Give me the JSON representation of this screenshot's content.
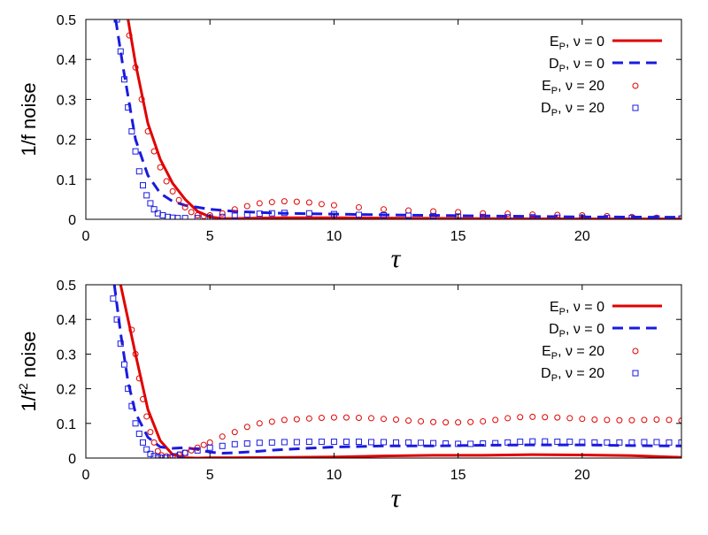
{
  "chart_data": [
    {
      "type": "line",
      "title": "",
      "ylabel": "1/f noise",
      "xlabel": "τ",
      "xlim": [
        0,
        24
      ],
      "ylim": [
        0,
        0.5
      ],
      "xticks": [
        0,
        5,
        10,
        15,
        20
      ],
      "yticks": [
        0,
        0.1,
        0.2,
        0.3,
        0.4,
        0.5
      ],
      "xtick_labels": [
        "0",
        "5",
        "10",
        "15",
        "20"
      ],
      "ytick_labels": [
        "0",
        "0.1",
        "0.2",
        "0.3",
        "0.4",
        "0.5"
      ],
      "legend_position": "top-right",
      "series": [
        {
          "name": "E_P, ν = 0",
          "label_base": "E",
          "label_sub": "P",
          "label_suffix": ", ν = 0",
          "style": "solid",
          "color": "#e00000",
          "x": [
            1.7,
            2.0,
            2.5,
            3.0,
            3.5,
            4.0,
            4.5,
            5.0,
            5.5,
            6.0,
            7.0,
            8.0,
            10.0,
            12.0,
            15.0,
            20.0,
            24.0
          ],
          "y": [
            0.5,
            0.39,
            0.24,
            0.15,
            0.09,
            0.05,
            0.02,
            0.006,
            0.002,
            0.002,
            0.003,
            0.004,
            0.004,
            0.003,
            0.002,
            0.001,
            0.001
          ]
        },
        {
          "name": "D_P, ν = 0",
          "label_base": "D",
          "label_sub": "P",
          "label_suffix": ", ν = 0",
          "style": "dashed",
          "color": "#1a1ae0",
          "x": [
            1.2,
            1.5,
            2.0,
            2.5,
            3.0,
            3.5,
            4.0,
            4.5,
            5.0,
            6.0,
            7.0,
            8.0,
            9.0,
            10.0,
            12.0,
            15.0,
            20.0,
            24.0
          ],
          "y": [
            0.5,
            0.38,
            0.2,
            0.11,
            0.065,
            0.045,
            0.035,
            0.03,
            0.025,
            0.02,
            0.017,
            0.015,
            0.014,
            0.013,
            0.011,
            0.009,
            0.006,
            0.005
          ]
        },
        {
          "name": "E_P, ν = 20",
          "label_base": "E",
          "label_sub": "P",
          "label_suffix": ", ν = 20",
          "style": "circle",
          "color": "#e00000",
          "x": [
            1.75,
            2.0,
            2.25,
            2.5,
            2.75,
            3.0,
            3.25,
            3.5,
            3.75,
            4.0,
            4.25,
            4.5,
            4.75,
            5.0,
            5.5,
            6.0,
            6.5,
            7.0,
            7.5,
            8.0,
            8.5,
            9.0,
            9.5,
            10.0,
            11.0,
            12.0,
            13.0,
            14.0,
            15.0,
            16.0,
            17.0,
            18.0,
            19.0,
            20.0,
            21.0,
            22.0,
            23.0,
            24.0
          ],
          "y": [
            0.46,
            0.38,
            0.3,
            0.22,
            0.17,
            0.13,
            0.095,
            0.07,
            0.048,
            0.03,
            0.018,
            0.01,
            0.008,
            0.01,
            0.015,
            0.025,
            0.033,
            0.04,
            0.043,
            0.045,
            0.044,
            0.042,
            0.038,
            0.035,
            0.03,
            0.025,
            0.022,
            0.02,
            0.018,
            0.015,
            0.014,
            0.012,
            0.011,
            0.01,
            0.008,
            0.006,
            0.004,
            0.002
          ]
        },
        {
          "name": "D_P, ν = 20",
          "label_base": "D",
          "label_sub": "P",
          "label_suffix": ", ν = 20",
          "style": "square",
          "color": "#1a1ae0",
          "x": [
            1.25,
            1.4,
            1.55,
            1.7,
            1.85,
            2.0,
            2.15,
            2.3,
            2.45,
            2.6,
            2.75,
            2.9,
            3.1,
            3.3,
            3.5,
            3.7,
            4.0,
            4.5,
            5.0,
            5.5,
            6.0,
            6.5,
            7.0,
            7.5,
            8.0,
            9.0,
            10.0,
            11.0,
            12.0,
            13.0,
            14.0,
            15.0,
            16.0,
            17.0,
            18.0,
            19.0,
            20.0,
            21.0,
            22.0,
            23.0,
            24.0
          ],
          "y": [
            0.5,
            0.42,
            0.35,
            0.28,
            0.22,
            0.17,
            0.12,
            0.085,
            0.06,
            0.04,
            0.025,
            0.015,
            0.01,
            0.006,
            0.004,
            0.003,
            0.003,
            0.003,
            0.004,
            0.006,
            0.009,
            0.012,
            0.014,
            0.015,
            0.016,
            0.015,
            0.013,
            0.011,
            0.01,
            0.009,
            0.008,
            0.007,
            0.006,
            0.005,
            0.005,
            0.004,
            0.004,
            0.003,
            0.003,
            0.002,
            0.002
          ]
        }
      ]
    },
    {
      "type": "line",
      "title": "",
      "ylabel_base": "1/f",
      "ylabel_sup": "2",
      "ylabel_suffix": " noise",
      "xlabel": "τ",
      "xlim": [
        0,
        24
      ],
      "ylim": [
        0,
        0.5
      ],
      "xticks": [
        0,
        5,
        10,
        15,
        20
      ],
      "yticks": [
        0,
        0.1,
        0.2,
        0.3,
        0.4,
        0.5
      ],
      "xtick_labels": [
        "0",
        "5",
        "10",
        "15",
        "20"
      ],
      "ytick_labels": [
        "0",
        "0.1",
        "0.2",
        "0.3",
        "0.4",
        "0.5"
      ],
      "legend_position": "top-right",
      "series": [
        {
          "name": "E_P, ν = 0",
          "label_base": "E",
          "label_sub": "P",
          "label_suffix": ", ν = 0",
          "style": "solid",
          "color": "#e00000",
          "x": [
            1.4,
            1.7,
            2.0,
            2.5,
            3.0,
            3.5,
            4.0,
            4.5,
            5.0,
            6.0,
            8.0,
            10.0,
            12.0,
            14.0,
            16.0,
            18.0,
            20.0,
            22.0,
            24.0
          ],
          "y": [
            0.5,
            0.4,
            0.3,
            0.14,
            0.05,
            0.01,
            0.001,
            0.0,
            0.001,
            0.001,
            0.002,
            0.003,
            0.006,
            0.008,
            0.008,
            0.01,
            0.009,
            0.007,
            0.002
          ]
        },
        {
          "name": "D_P, ν = 0",
          "label_base": "D",
          "label_sub": "P",
          "label_suffix": ", ν = 0",
          "style": "dashed",
          "color": "#1a1ae0",
          "x": [
            1.15,
            1.4,
            1.7,
            2.0,
            2.5,
            3.0,
            3.5,
            4.0,
            4.5,
            5.0,
            5.5,
            6.0,
            7.0,
            8.0,
            10.0,
            12.0,
            14.0,
            16.0,
            18.0,
            20.0,
            22.0,
            24.0
          ],
          "y": [
            0.5,
            0.36,
            0.22,
            0.13,
            0.06,
            0.032,
            0.028,
            0.03,
            0.025,
            0.017,
            0.014,
            0.015,
            0.02,
            0.025,
            0.032,
            0.035,
            0.035,
            0.037,
            0.038,
            0.038,
            0.036,
            0.035
          ]
        },
        {
          "name": "E_P, ν = 20",
          "label_base": "E",
          "label_sub": "P",
          "label_suffix": ", ν = 20",
          "style": "circle",
          "color": "#e00000",
          "x": [
            1.85,
            2.0,
            2.15,
            2.3,
            2.45,
            2.6,
            2.75,
            2.9,
            3.05,
            3.25,
            3.5,
            3.75,
            4.0,
            4.25,
            4.5,
            4.75,
            5.0,
            5.5,
            6.0,
            6.5,
            7.0,
            7.5,
            8.0,
            8.5,
            9.0,
            9.5,
            10.0,
            10.5,
            11.0,
            11.5,
            12.0,
            12.5,
            13.0,
            13.5,
            14.0,
            14.5,
            15.0,
            15.5,
            16.0,
            16.5,
            17.0,
            17.5,
            18.0,
            18.5,
            19.0,
            19.5,
            20.0,
            20.5,
            21.0,
            21.5,
            22.0,
            22.5,
            23.0,
            23.5,
            24.0
          ],
          "y": [
            0.37,
            0.3,
            0.23,
            0.17,
            0.12,
            0.075,
            0.045,
            0.02,
            0.008,
            0.005,
            0.006,
            0.01,
            0.015,
            0.022,
            0.03,
            0.038,
            0.045,
            0.062,
            0.075,
            0.09,
            0.1,
            0.105,
            0.11,
            0.112,
            0.114,
            0.116,
            0.117,
            0.117,
            0.116,
            0.115,
            0.113,
            0.111,
            0.108,
            0.106,
            0.104,
            0.103,
            0.103,
            0.104,
            0.106,
            0.11,
            0.115,
            0.118,
            0.119,
            0.118,
            0.117,
            0.115,
            0.113,
            0.111,
            0.11,
            0.109,
            0.109,
            0.11,
            0.111,
            0.11,
            0.108
          ]
        },
        {
          "name": "D_P, ν = 20",
          "label_base": "D",
          "label_sub": "P",
          "label_suffix": ", ν = 20",
          "style": "square",
          "color": "#1a1ae0",
          "x": [
            1.1,
            1.25,
            1.4,
            1.55,
            1.7,
            1.85,
            2.0,
            2.15,
            2.3,
            2.45,
            2.6,
            2.75,
            2.9,
            3.05,
            3.2,
            3.4,
            3.6,
            3.8,
            4.0,
            4.5,
            5.0,
            5.5,
            6.0,
            6.5,
            7.0,
            7.5,
            8.0,
            8.5,
            9.0,
            9.5,
            10.0,
            10.5,
            11.0,
            11.5,
            12.0,
            12.5,
            13.0,
            13.5,
            14.0,
            14.5,
            15.0,
            15.5,
            16.0,
            16.5,
            17.0,
            17.5,
            18.0,
            18.5,
            19.0,
            19.5,
            20.0,
            20.5,
            21.0,
            21.5,
            22.0,
            22.5,
            23.0,
            23.5,
            24.0
          ],
          "y": [
            0.46,
            0.4,
            0.33,
            0.27,
            0.2,
            0.15,
            0.1,
            0.07,
            0.045,
            0.025,
            0.012,
            0.006,
            0.002,
            0.001,
            0.0,
            0.002,
            0.005,
            0.01,
            0.015,
            0.022,
            0.03,
            0.035,
            0.04,
            0.042,
            0.044,
            0.045,
            0.046,
            0.046,
            0.047,
            0.047,
            0.047,
            0.047,
            0.047,
            0.046,
            0.046,
            0.045,
            0.045,
            0.044,
            0.043,
            0.042,
            0.041,
            0.041,
            0.042,
            0.043,
            0.045,
            0.047,
            0.048,
            0.048,
            0.047,
            0.047,
            0.046,
            0.045,
            0.045,
            0.045,
            0.045,
            0.046,
            0.046,
            0.045,
            0.045
          ]
        }
      ]
    }
  ]
}
